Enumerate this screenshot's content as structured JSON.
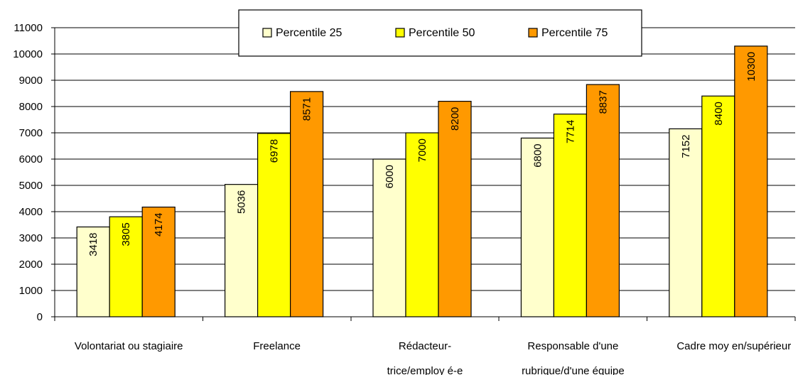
{
  "chart_data": {
    "type": "bar",
    "title": "",
    "xlabel": "",
    "ylabel": "",
    "ylim": [
      0,
      11000
    ],
    "yticks": [
      0,
      1000,
      2000,
      3000,
      4000,
      5000,
      6000,
      7000,
      8000,
      9000,
      10000,
      11000
    ],
    "grid": true,
    "legend_position": "top-center",
    "categories": [
      [
        "Volontariat ou stagiaire"
      ],
      [
        "Freelance"
      ],
      [
        "Rédacteur-",
        "trice/employ é-e"
      ],
      [
        "Responsable d'une",
        "rubrique/d'une équipe"
      ],
      [
        "Cadre moy en/supérieur"
      ]
    ],
    "series": [
      {
        "name": "Percentile 25",
        "color": "#FFFFCC",
        "values": [
          3418,
          5036,
          6000,
          6800,
          7152
        ]
      },
      {
        "name": "Percentile 50",
        "color": "#FFFF00",
        "values": [
          3805,
          6978,
          7000,
          7714,
          8400
        ]
      },
      {
        "name": "Percentile 75",
        "color": "#FF9900",
        "values": [
          4174,
          8571,
          8200,
          8837,
          10300
        ]
      }
    ]
  }
}
